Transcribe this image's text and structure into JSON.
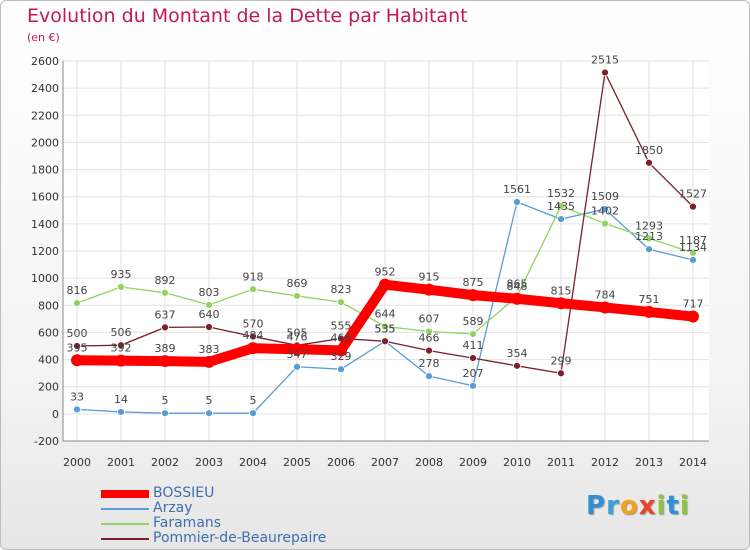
{
  "title": "Evolution du Montant de la Dette par Habitant",
  "subtitle": "(en €)",
  "logo": "Proxiti",
  "chart_data": {
    "type": "line",
    "x": [
      "2000",
      "2001",
      "2002",
      "2003",
      "2004",
      "2005",
      "2006",
      "2007",
      "2008",
      "2009",
      "2010",
      "2011",
      "2012",
      "2013",
      "2014"
    ],
    "ylim": [
      -200,
      2600
    ],
    "yticks": [
      "-200",
      "0",
      "200",
      "400",
      "600",
      "800",
      "1000",
      "1200",
      "1400",
      "1600",
      "1800",
      "2000",
      "2200",
      "2400",
      "2600"
    ],
    "grid": true,
    "legend_position": "bottom-left",
    "series": [
      {
        "name": "BOSSIEU",
        "color": "#ff0000",
        "values": [
          395,
          392,
          389,
          383,
          484,
          476,
          468,
          952,
          915,
          875,
          848,
          815,
          784,
          751,
          717
        ],
        "labels": [
          "395",
          "392",
          "389",
          "383",
          "484",
          "476",
          "468",
          "952",
          "915",
          "875",
          "848",
          "815",
          "784",
          "751",
          "717"
        ]
      },
      {
        "name": "Arzay",
        "color": "#5a9bd5",
        "values": [
          33,
          14,
          5,
          5,
          5,
          347,
          329,
          535,
          278,
          207,
          1561,
          1435,
          1509,
          1213,
          1134
        ],
        "labels": [
          "33",
          "14",
          "5",
          "5",
          "5",
          "347",
          "329",
          "535",
          "278",
          "207",
          "1561",
          "1435",
          "1509",
          "1213",
          "1134"
        ]
      },
      {
        "name": "Faramans",
        "color": "#8fd460",
        "values": [
          816,
          935,
          892,
          803,
          918,
          869,
          823,
          644,
          607,
          589,
          865,
          1532,
          1402,
          1293,
          1187
        ],
        "labels": [
          "816",
          "935",
          "892",
          "803",
          "918",
          "869",
          "823",
          "644",
          "607",
          "589",
          "865",
          "1532",
          "1402",
          "1293",
          "1187"
        ]
      },
      {
        "name": "Pommier-de-Beaurepaire",
        "color": "#7a1f2b",
        "values": [
          500,
          506,
          637,
          640,
          570,
          505,
          555,
          535,
          466,
          411,
          354,
          299,
          2515,
          1850,
          1527
        ],
        "labels": [
          "500",
          "506",
          "637",
          "640",
          "570",
          "505",
          "555",
          "535",
          "466",
          "411",
          "354",
          "299",
          "2515",
          "1850",
          "1527"
        ]
      }
    ]
  }
}
